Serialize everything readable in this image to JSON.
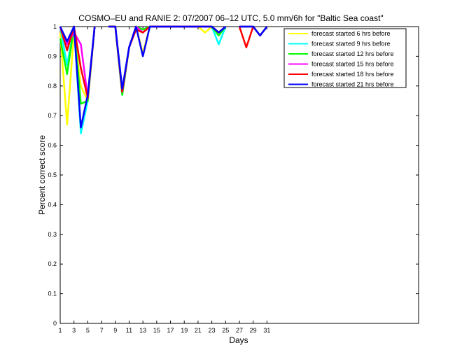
{
  "chart_data": {
    "type": "line",
    "title": "COSMO–EU and RANIE 2: 07/2007 06–12 UTC, 5.0 mm/6h for \"Baltic Sea coast\"",
    "xlabel": "Days",
    "ylabel": "Percent correct score",
    "xlim": [
      1,
      53
    ],
    "ylim": [
      0,
      1
    ],
    "xticks": [
      1,
      3,
      5,
      7,
      9,
      11,
      13,
      15,
      17,
      19,
      21,
      23,
      25,
      27,
      29,
      31
    ],
    "yticks": [
      0,
      0.1,
      0.2,
      0.3,
      0.4,
      0.5,
      0.6,
      0.7,
      0.8,
      0.9,
      1
    ],
    "ytick_labels": [
      "0",
      "0.1",
      "0.2",
      "0.3",
      "0.4",
      "0.5",
      "0.6",
      "0.7",
      "0.8",
      "0.9",
      "1"
    ],
    "legend_position": "top-right",
    "series": [
      {
        "name": "forecast started 6 hrs before",
        "color": "#ffff00",
        "points": [
          [
            1,
            0.98
          ],
          [
            2,
            0.67
          ],
          [
            3,
            0.98
          ],
          [
            4,
            0.8
          ],
          [
            5,
            0.75
          ],
          [
            6,
            1.0
          ],
          [
            null,
            null
          ],
          [
            8,
            1.0
          ],
          [
            9,
            1.0
          ],
          [
            10,
            0.77
          ],
          [
            11,
            0.93
          ],
          [
            12,
            1.0
          ],
          [
            13,
            0.91
          ],
          [
            14,
            1.0
          ],
          [
            15,
            1.0
          ],
          [
            16,
            1.0
          ],
          [
            17,
            1.0
          ],
          [
            18,
            1.0
          ],
          [
            19,
            1.0
          ],
          [
            20,
            1.0
          ],
          [
            21,
            1.0
          ],
          [
            22,
            0.98
          ],
          [
            23,
            1.0
          ],
          [
            24,
            0.98
          ],
          [
            25,
            1.0
          ],
          [
            null,
            null
          ],
          [
            27,
            1.0
          ],
          [
            28,
            1.0
          ],
          [
            29,
            1.0
          ],
          [
            30,
            0.97
          ],
          [
            31,
            1.0
          ]
        ]
      },
      {
        "name": "forecast started 9 hrs before",
        "color": "#00ffff",
        "points": [
          [
            1,
            1.0
          ],
          [
            2,
            0.87
          ],
          [
            3,
            1.0
          ],
          [
            4,
            0.64
          ],
          [
            5,
            0.75
          ],
          [
            6,
            1.0
          ],
          [
            null,
            null
          ],
          [
            8,
            1.0
          ],
          [
            9,
            1.0
          ],
          [
            10,
            0.77
          ],
          [
            11,
            0.93
          ],
          [
            12,
            1.0
          ],
          [
            13,
            0.98
          ],
          [
            14,
            1.0
          ],
          [
            15,
            1.0
          ],
          [
            16,
            1.0
          ],
          [
            17,
            1.0
          ],
          [
            18,
            1.0
          ],
          [
            19,
            1.0
          ],
          [
            20,
            1.0
          ],
          [
            21,
            1.0
          ],
          [
            22,
            1.0
          ],
          [
            23,
            1.0
          ],
          [
            24,
            0.94
          ],
          [
            25,
            1.0
          ],
          [
            null,
            null
          ],
          [
            27,
            1.0
          ],
          [
            28,
            1.0
          ],
          [
            29,
            1.0
          ],
          [
            30,
            0.97
          ],
          [
            31,
            1.0
          ]
        ]
      },
      {
        "name": "forecast started 12 hrs before",
        "color": "#00ff00",
        "points": [
          [
            1,
            0.96
          ],
          [
            2,
            0.84
          ],
          [
            3,
            1.0
          ],
          [
            4,
            0.74
          ],
          [
            5,
            0.75
          ],
          [
            6,
            1.0
          ],
          [
            null,
            null
          ],
          [
            8,
            1.0
          ],
          [
            9,
            1.0
          ],
          [
            10,
            0.77
          ],
          [
            11,
            0.93
          ],
          [
            12,
            1.0
          ],
          [
            13,
            0.99
          ],
          [
            14,
            1.0
          ],
          [
            15,
            1.0
          ],
          [
            16,
            1.0
          ],
          [
            17,
            1.0
          ],
          [
            18,
            1.0
          ],
          [
            19,
            1.0
          ],
          [
            20,
            1.0
          ],
          [
            21,
            1.0
          ],
          [
            22,
            1.0
          ],
          [
            23,
            1.0
          ],
          [
            24,
            0.97
          ],
          [
            25,
            1.0
          ],
          [
            null,
            null
          ],
          [
            27,
            1.0
          ],
          [
            28,
            1.0
          ],
          [
            29,
            1.0
          ],
          [
            30,
            0.97
          ],
          [
            31,
            1.0
          ]
        ]
      },
      {
        "name": "forecast started 15 hrs before",
        "color": "#ff00ff",
        "points": [
          [
            1,
            1.0
          ],
          [
            2,
            0.94
          ],
          [
            3,
            0.98
          ],
          [
            4,
            0.94
          ],
          [
            5,
            0.76
          ],
          [
            6,
            1.0
          ],
          [
            null,
            null
          ],
          [
            8,
            1.0
          ],
          [
            9,
            1.0
          ],
          [
            10,
            0.78
          ],
          [
            11,
            0.93
          ],
          [
            12,
            1.0
          ],
          [
            13,
            0.98
          ],
          [
            14,
            1.0
          ],
          [
            15,
            1.0
          ],
          [
            16,
            1.0
          ],
          [
            17,
            1.0
          ],
          [
            18,
            1.0
          ],
          [
            19,
            1.0
          ],
          [
            20,
            1.0
          ],
          [
            21,
            1.0
          ],
          [
            22,
            1.0
          ],
          [
            23,
            1.0
          ],
          [
            24,
            0.98
          ],
          [
            25,
            1.0
          ],
          [
            null,
            null
          ],
          [
            27,
            1.0
          ],
          [
            28,
            1.0
          ],
          [
            29,
            1.0
          ],
          [
            30,
            0.97
          ],
          [
            31,
            1.0
          ]
        ]
      },
      {
        "name": "forecast started 18 hrs before",
        "color": "#ff0000",
        "points": [
          [
            1,
            1.0
          ],
          [
            2,
            0.92
          ],
          [
            3,
            1.0
          ],
          [
            4,
            0.86
          ],
          [
            5,
            0.76
          ],
          [
            6,
            1.0
          ],
          [
            null,
            null
          ],
          [
            8,
            1.0
          ],
          [
            9,
            1.0
          ],
          [
            10,
            0.78
          ],
          [
            11,
            0.93
          ],
          [
            12,
            0.99
          ],
          [
            13,
            0.98
          ],
          [
            14,
            1.0
          ],
          [
            15,
            1.0
          ],
          [
            16,
            1.0
          ],
          [
            17,
            1.0
          ],
          [
            18,
            1.0
          ],
          [
            19,
            1.0
          ],
          [
            20,
            1.0
          ],
          [
            21,
            1.0
          ],
          [
            22,
            1.0
          ],
          [
            23,
            1.0
          ],
          [
            24,
            0.98
          ],
          [
            25,
            1.0
          ],
          [
            null,
            null
          ],
          [
            27,
            1.0
          ],
          [
            28,
            0.93
          ],
          [
            29,
            1.0
          ],
          [
            30,
            0.97
          ],
          [
            31,
            1.0
          ]
        ]
      },
      {
        "name": "forecast started 21 hrs before",
        "color": "#0000ff",
        "points": [
          [
            1,
            1.0
          ],
          [
            2,
            0.95
          ],
          [
            3,
            1.0
          ],
          [
            4,
            0.66
          ],
          [
            5,
            0.77
          ],
          [
            6,
            1.0
          ],
          [
            null,
            null
          ],
          [
            8,
            1.0
          ],
          [
            9,
            1.0
          ],
          [
            10,
            0.79
          ],
          [
            11,
            0.93
          ],
          [
            12,
            1.0
          ],
          [
            13,
            0.9
          ],
          [
            14,
            1.0
          ],
          [
            15,
            1.0
          ],
          [
            16,
            1.0
          ],
          [
            17,
            1.0
          ],
          [
            18,
            1.0
          ],
          [
            19,
            1.0
          ],
          [
            20,
            1.0
          ],
          [
            21,
            1.0
          ],
          [
            22,
            1.0
          ],
          [
            23,
            1.0
          ],
          [
            24,
            0.98
          ],
          [
            25,
            1.0
          ],
          [
            null,
            null
          ],
          [
            27,
            1.0
          ],
          [
            28,
            1.0
          ],
          [
            29,
            1.0
          ],
          [
            30,
            0.97
          ],
          [
            31,
            1.0
          ]
        ]
      }
    ]
  }
}
